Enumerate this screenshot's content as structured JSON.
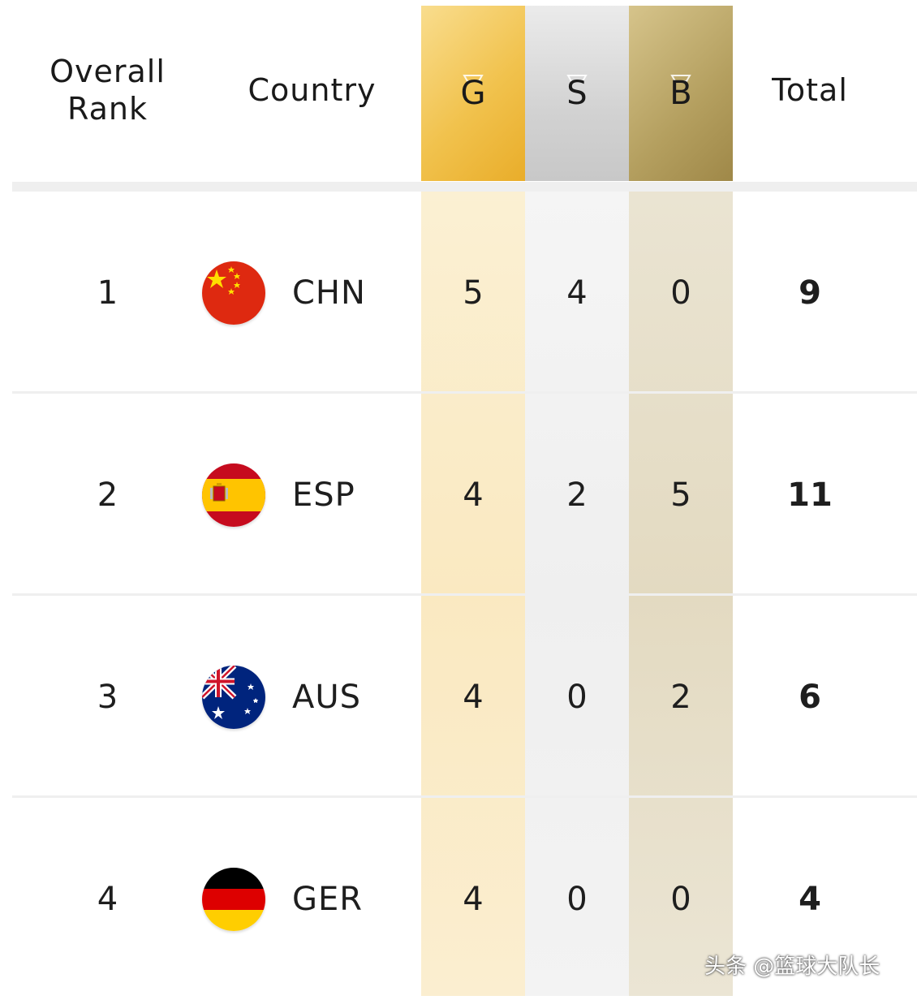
{
  "header": {
    "rank_line1": "Overall",
    "rank_line2": "Rank",
    "country": "Country",
    "gold": "G",
    "silver": "S",
    "bronze": "B",
    "total": "Total"
  },
  "colors": {
    "gold": "#f1c24d",
    "silver": "#d2d2d2",
    "bronze": "#b49f5f"
  },
  "rows": [
    {
      "rank": "1",
      "flag_icon": "china-flag-icon",
      "code": "CHN",
      "gold": "5",
      "silver": "4",
      "bronze": "0",
      "total": "9"
    },
    {
      "rank": "2",
      "flag_icon": "spain-flag-icon",
      "code": "ESP",
      "gold": "4",
      "silver": "2",
      "bronze": "5",
      "total": "11"
    },
    {
      "rank": "3",
      "flag_icon": "australia-flag-icon",
      "code": "AUS",
      "gold": "4",
      "silver": "0",
      "bronze": "2",
      "total": "6"
    },
    {
      "rank": "4",
      "flag_icon": "germany-flag-icon",
      "code": "GER",
      "gold": "4",
      "silver": "0",
      "bronze": "0",
      "total": "4"
    }
  ],
  "watermark": "头条 @篮球大队长"
}
